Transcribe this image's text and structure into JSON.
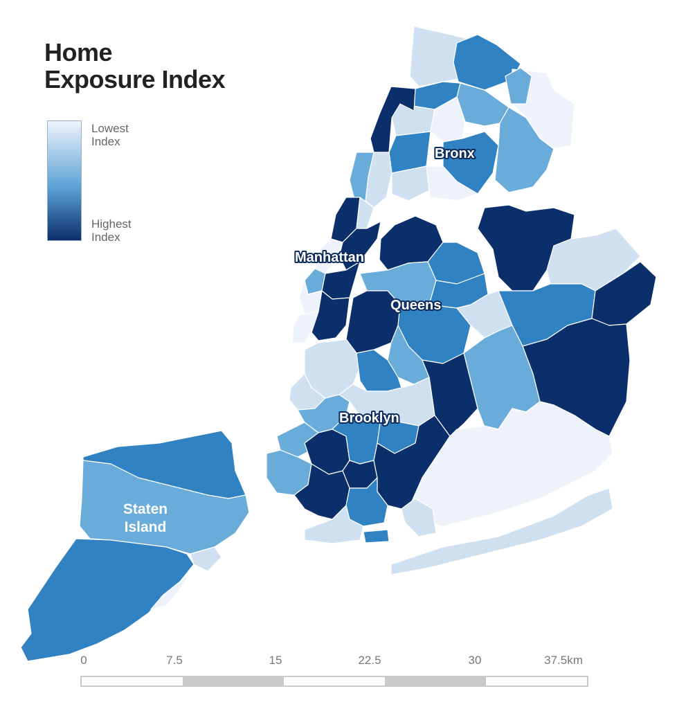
{
  "title": {
    "line1": "Home",
    "line2": "Exposure Index"
  },
  "legend": {
    "low_label_1": "Lowest",
    "low_label_2": "Index",
    "high_label_1": "Highest",
    "high_label_2": "Index",
    "color_low": "#eef3fb",
    "color_mid": "#5ea3d6",
    "color_high": "#0b2f6b"
  },
  "borough_labels": {
    "bronx": "Bronx",
    "manhattan": "Manhattan",
    "queens": "Queens",
    "brooklyn": "Brooklyn",
    "staten_island_1": "Staten",
    "staten_island_2": "Island"
  },
  "index_colors": {
    "level_1": "#eef3fb",
    "level_2": "#cfe0f1",
    "level_3": "#6aacd9",
    "level_4": "#3182c2",
    "level_5": "#0b2f6b"
  },
  "scale_bar": {
    "ticks": [
      "0",
      "7.5",
      "15",
      "22.5",
      "30",
      "37.5km"
    ]
  }
}
